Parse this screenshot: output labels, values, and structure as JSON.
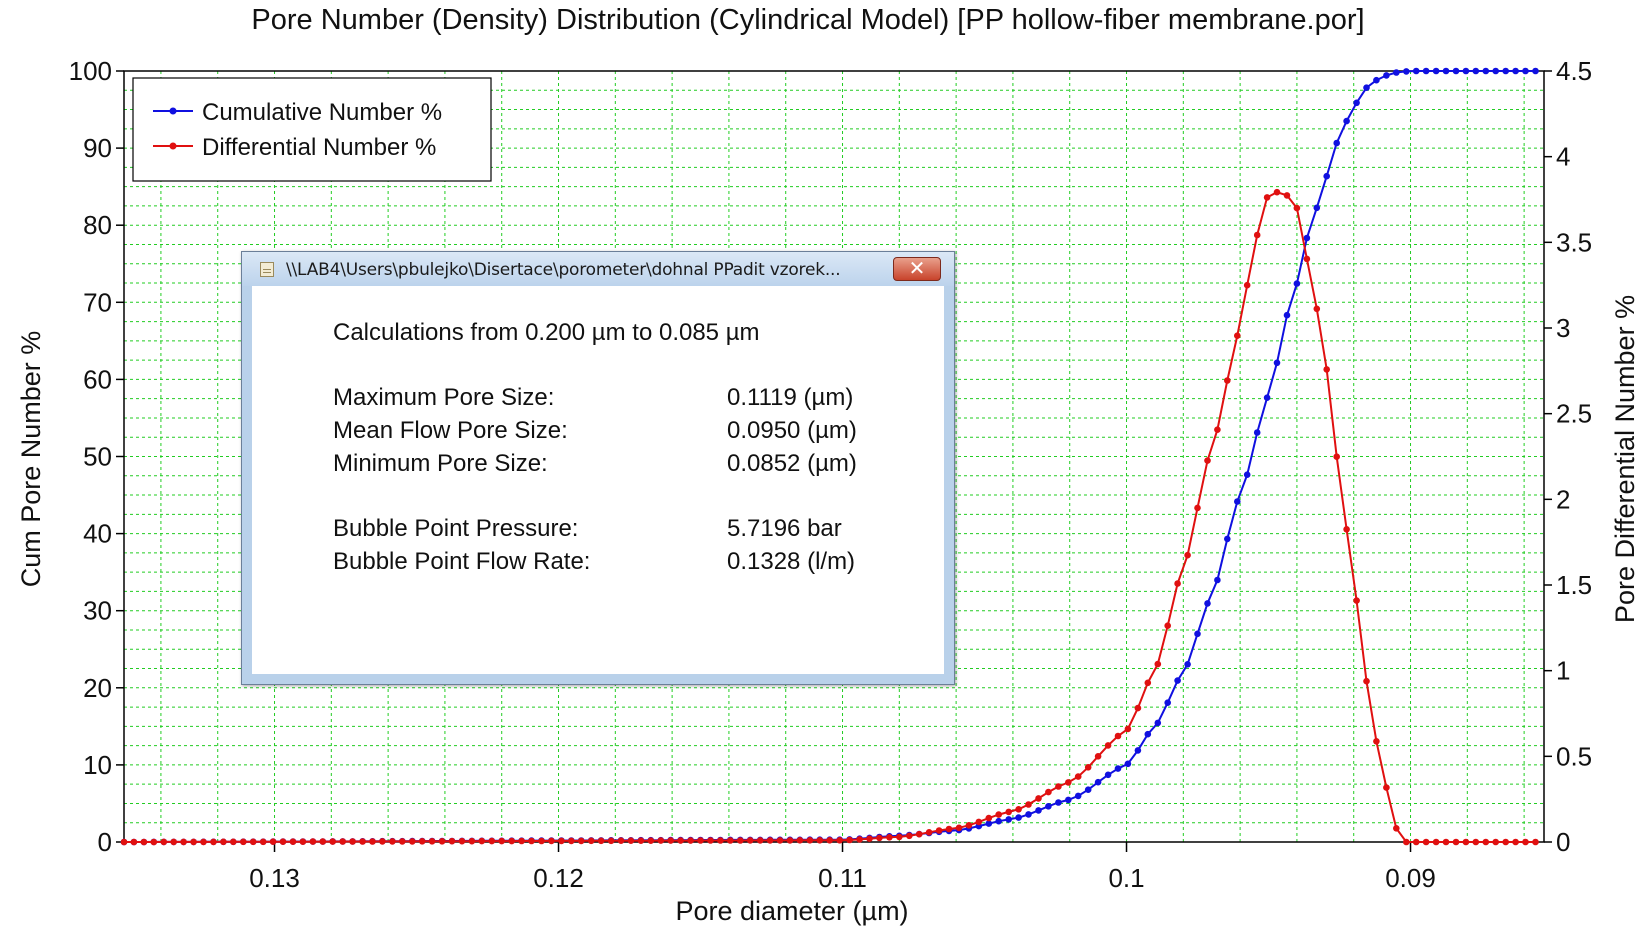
{
  "chart_data": {
    "type": "line",
    "title": "Pore Number (Density) Distribution (Cylindrical Model) [PP hollow-fiber membrane.por]",
    "xlabel": "Pore diameter  (µm)",
    "ylabel_left": "Cum Pore Number %",
    "ylabel_right": "Pore Differential Number %",
    "x_axis_reversed": true,
    "xlim": [
      0.1353,
      0.0853
    ],
    "ylim_left": [
      0,
      100
    ],
    "ylim_right": [
      0,
      4.5
    ],
    "x_ticks": [
      0.13,
      0.12,
      0.11,
      0.1,
      0.09
    ],
    "x_tick_labels": [
      "0.13",
      "0.12",
      "0.11",
      "0.1",
      "0.09"
    ],
    "y_left_ticks": [
      0,
      10,
      20,
      30,
      40,
      50,
      60,
      70,
      80,
      90,
      100
    ],
    "y_left_tick_labels": [
      "0",
      "10",
      "20",
      "30",
      "40",
      "50",
      "60",
      "70",
      "80",
      "90",
      "100"
    ],
    "y_right_ticks": [
      0,
      0.5,
      1,
      1.5,
      2,
      2.5,
      3,
      3.5,
      4,
      4.5
    ],
    "y_right_tick_labels": [
      "0",
      "0.5",
      "1",
      "1.5",
      "2",
      "2.5",
      "3",
      "3.5",
      "4",
      "4.5"
    ],
    "grid": true,
    "grid_color": "#22cc22",
    "legend_position": "top-left",
    "series": [
      {
        "name": "Cumulative Number %",
        "axis": "left",
        "color": "#1010e0",
        "x": [
          0.1353,
          0.11,
          0.108,
          0.106,
          0.104,
          0.102,
          0.1,
          0.099,
          0.098,
          0.097,
          0.096,
          0.095,
          0.0942,
          0.0935,
          0.093,
          0.0925,
          0.092,
          0.0915,
          0.091,
          0.0905,
          0.09,
          0.0853
        ],
        "y": [
          0,
          0.3,
          0.8,
          1.5,
          3,
          5.5,
          10,
          15,
          22,
          32,
          45,
          58,
          70,
          80,
          86,
          91.5,
          95.5,
          98,
          99.3,
          99.8,
          100,
          100
        ]
      },
      {
        "name": "Differential Number %",
        "axis": "right",
        "color": "#e01010",
        "x": [
          0.1353,
          0.11,
          0.108,
          0.106,
          0.104,
          0.102,
          0.1,
          0.099,
          0.098,
          0.097,
          0.096,
          0.0955,
          0.095,
          0.0945,
          0.094,
          0.0935,
          0.093,
          0.0925,
          0.092,
          0.0915,
          0.091,
          0.0905,
          0.0903,
          0.0853
        ],
        "y": [
          0,
          0.01,
          0.03,
          0.08,
          0.18,
          0.35,
          0.65,
          1.0,
          1.6,
          2.3,
          3.0,
          3.5,
          3.78,
          3.8,
          3.7,
          3.3,
          2.8,
          2.15,
          1.5,
          0.9,
          0.4,
          0.08,
          0,
          0
        ]
      }
    ]
  },
  "dialog": {
    "title": "\\\\LAB4\\Users\\pbulejko\\Disertace\\porometer\\dohnal PPadit vzorek...",
    "close_label": "✕",
    "calc_range": "Calculations from 0.200 µm to 0.085 µm",
    "max_label": "Maximum Pore Size:",
    "max_value": "0.1119 (µm)",
    "mean_label": "Mean Flow Pore Size:",
    "mean_value": "0.0950 (µm)",
    "min_label": "Minimum Pore Size:",
    "min_value": "0.0852 (µm)",
    "bp_label": "Bubble Point Pressure:",
    "bp_value": "5.7196 bar",
    "bpf_label": "Bubble Point Flow Rate:",
    "bpf_value": "0.1328 (l/m)"
  }
}
